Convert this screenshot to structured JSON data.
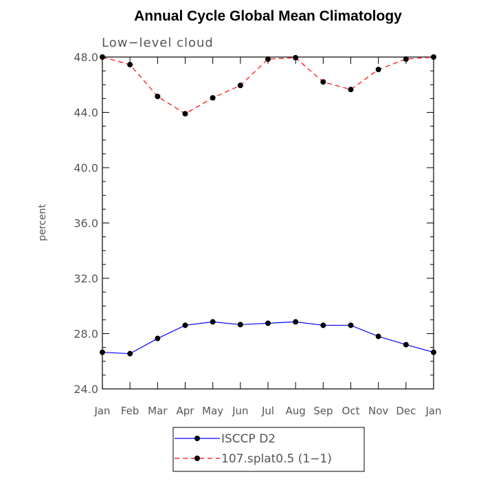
{
  "chart_data": {
    "type": "line",
    "title": "Annual Cycle Global Mean Climatology",
    "subtitle": "Low−level cloud",
    "ylabel": "percent",
    "xlabel": "",
    "categories": [
      "Jan",
      "Feb",
      "Mar",
      "Apr",
      "May",
      "Jun",
      "Jul",
      "Aug",
      "Sep",
      "Oct",
      "Nov",
      "Dec",
      "Jan"
    ],
    "ylim": [
      24.0,
      48.0
    ],
    "yticks": [
      "24.0",
      "28.0",
      "32.0",
      "36.0",
      "40.0",
      "44.0",
      "48.0"
    ],
    "yminor_step": 1,
    "grid": false,
    "legend_position": "bottom",
    "series": [
      {
        "name": "ISCCP D2",
        "color": "#0000ff",
        "line_style": "solid",
        "marker": "filled-circle",
        "values": [
          26.65,
          26.55,
          27.65,
          28.6,
          28.85,
          28.65,
          28.75,
          28.85,
          28.6,
          28.6,
          27.8,
          27.2,
          26.65
        ]
      },
      {
        "name": "107.splat0.5 (1−1)",
        "color": "#ff0000",
        "line_style": "dashed",
        "marker": "filled-circle",
        "values": [
          48.0,
          47.45,
          45.15,
          43.9,
          45.05,
          45.95,
          47.85,
          47.95,
          46.2,
          45.65,
          47.1,
          47.85,
          48.0
        ]
      }
    ]
  }
}
